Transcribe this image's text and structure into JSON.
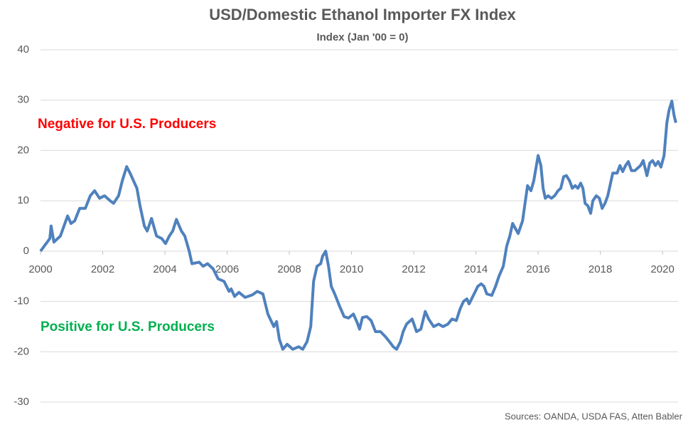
{
  "chart_data": {
    "type": "line",
    "title": "USD/Domestic Ethanol Importer FX Index",
    "subtitle": "Index (Jan '00 = 0)",
    "annotations": [
      {
        "text": "Negative for U.S. Producers",
        "color": "#ff0000"
      },
      {
        "text": "Positive for U.S. Producers",
        "color": "#00b050"
      }
    ],
    "source": "Sources: OANDA, USDA FAS, Atten Babler",
    "xlim": [
      2000,
      2020.5
    ],
    "xticks": [
      2000,
      2002,
      2004,
      2006,
      2008,
      2010,
      2012,
      2014,
      2016,
      2018,
      2020
    ],
    "ylim": [
      -30,
      40
    ],
    "yticks": [
      -30,
      -20,
      -10,
      0,
      10,
      20,
      30,
      40
    ],
    "grid": true,
    "x": [
      2000,
      2000.3,
      2000.34,
      2000.43,
      2000.64,
      2000.87,
      2000.98,
      2001.1,
      2001.26,
      2001.44,
      2001.6,
      2001.74,
      2001.9,
      2002.06,
      2002.24,
      2002.35,
      2002.51,
      2002.63,
      2002.77,
      2002.88,
      2002.99,
      2003.1,
      2003.2,
      2003.34,
      2003.43,
      2003.57,
      2003.73,
      2003.9,
      2004.02,
      2004.14,
      2004.25,
      2004.37,
      2004.53,
      2004.64,
      2004.78,
      2004.87,
      2005.1,
      2005.23,
      2005.37,
      2005.55,
      2005.71,
      2005.9,
      2006.06,
      2006.13,
      2006.24,
      2006.38,
      2006.58,
      2006.81,
      2006.97,
      2007.15,
      2007.31,
      2007.5,
      2007.59,
      2007.68,
      2007.79,
      2007.93,
      2008.11,
      2008.3,
      2008.43,
      2008.57,
      2008.69,
      2008.78,
      2008.89,
      2009.01,
      2009.07,
      2009.17,
      2009.26,
      2009.35,
      2009.46,
      2009.62,
      2009.76,
      2009.9,
      2010.06,
      2010.17,
      2010.26,
      2010.35,
      2010.49,
      2010.63,
      2010.77,
      2010.93,
      2011.09,
      2011.22,
      2011.34,
      2011.45,
      2011.57,
      2011.66,
      2011.77,
      2011.95,
      2012.09,
      2012.23,
      2012.37,
      2012.48,
      2012.64,
      2012.8,
      2012.94,
      2013.1,
      2013.23,
      2013.37,
      2013.49,
      2013.6,
      2013.71,
      2013.78,
      2013.94,
      2014.06,
      2014.17,
      2014.26,
      2014.35,
      2014.51,
      2014.63,
      2014.74,
      2014.88,
      2014.99,
      2015.09,
      2015.18,
      2015.36,
      2015.5,
      2015.66,
      2015.77,
      2015.86,
      2016.0,
      2016.09,
      2016.16,
      2016.23,
      2016.32,
      2016.43,
      2016.53,
      2016.64,
      2016.73,
      2016.82,
      2016.91,
      2017.01,
      2017.1,
      2017.19,
      2017.28,
      2017.37,
      2017.44,
      2017.51,
      2017.6,
      2017.69,
      2017.76,
      2017.87,
      2017.97,
      2018.06,
      2018.15,
      2018.24,
      2018.33,
      2018.4,
      2018.54,
      2018.63,
      2018.72,
      2018.81,
      2018.9,
      2019.0,
      2019.11,
      2019.2,
      2019.29,
      2019.38,
      2019.5,
      2019.59,
      2019.68,
      2019.77,
      2019.86,
      2019.95,
      2020.05,
      2020.14,
      2020.21,
      2020.3,
      2020.37,
      2020.43
    ],
    "series": [
      {
        "name": "FX Index",
        "color": "#4f81bd",
        "values": [
          0,
          2.5,
          5,
          1.8,
          3,
          7,
          5.5,
          6,
          8.5,
          8.5,
          11,
          12,
          10.5,
          11,
          10,
          9.5,
          11,
          14,
          16.8,
          15.5,
          14,
          12.5,
          9,
          5,
          4,
          6.5,
          3,
          2.5,
          1.5,
          3,
          4,
          6.3,
          4,
          3,
          0,
          -2.5,
          -2.2,
          -3,
          -2.5,
          -3.5,
          -5.5,
          -6,
          -8,
          -7.5,
          -9,
          -8.2,
          -9.2,
          -8.7,
          -8,
          -8.5,
          -12.5,
          -15,
          -14,
          -17.5,
          -19.5,
          -18.5,
          -19.5,
          -19,
          -19.5,
          -18,
          -15,
          -6,
          -3,
          -2.5,
          -1,
          0,
          -3,
          -7,
          -8.5,
          -11,
          -13,
          -13.3,
          -12.5,
          -14,
          -15.5,
          -13.2,
          -13,
          -13.8,
          -16,
          -16,
          -17,
          -18,
          -19,
          -19.5,
          -18,
          -16,
          -14.5,
          -13.5,
          -16,
          -15.5,
          -12,
          -13.5,
          -15,
          -14.5,
          -15,
          -14.5,
          -13.5,
          -13.8,
          -11.5,
          -10,
          -9.5,
          -10.5,
          -8.5,
          -7,
          -6.5,
          -7,
          -8.5,
          -8.8,
          -7,
          -5,
          -3,
          1,
          3,
          5.5,
          3.5,
          6,
          13,
          12,
          14,
          19,
          17,
          12.5,
          10.5,
          11,
          10.5,
          11,
          12,
          12.5,
          14.8,
          15,
          14,
          12.5,
          13,
          12.5,
          13.5,
          12.5,
          9.5,
          9,
          7.5,
          10,
          11,
          10.5,
          8.5,
          9.5,
          11,
          13.5,
          15.5,
          15.5,
          17,
          15.8,
          17,
          17.8,
          16,
          16,
          16.5,
          17,
          18,
          15,
          17.5,
          18,
          17,
          17.8,
          16.7,
          19,
          25.5,
          28,
          29.8,
          27,
          25.5
        ]
      }
    ]
  }
}
